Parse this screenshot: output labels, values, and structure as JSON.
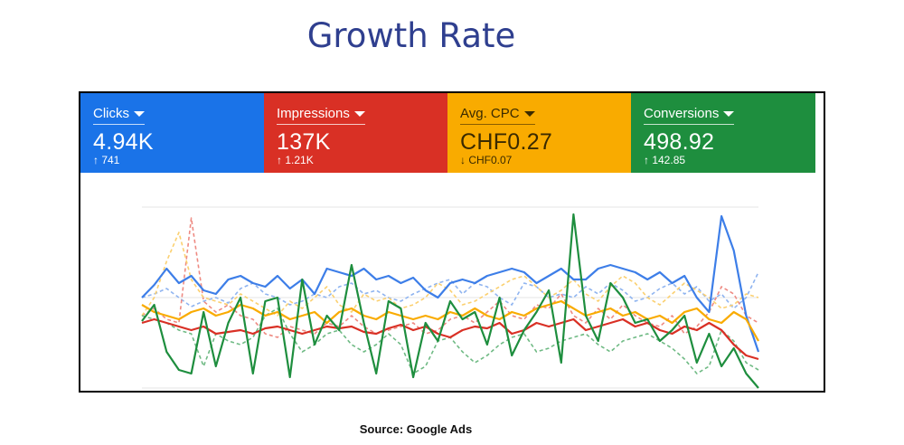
{
  "title": "Growth Rate",
  "source": "Source: Google Ads",
  "metrics": [
    {
      "label": "Clicks",
      "value": "4.94K",
      "change": "↑ 741",
      "color": "#1a73e8"
    },
    {
      "label": "Impressions",
      "value": "137K",
      "change": "↑ 1.21K",
      "color": "#d93025"
    },
    {
      "label": "Avg. CPC",
      "value": "CHF0.27",
      "change": "↓ CHF0.07",
      "color": "#f9ab00"
    },
    {
      "label": "Conversions",
      "value": "498.92",
      "change": "↑ 142.85",
      "color": "#1e8e3e"
    }
  ],
  "chart_data": {
    "type": "line",
    "grid": true,
    "ylim": [
      0,
      100
    ],
    "x": [
      0,
      1,
      2,
      3,
      4,
      5,
      6,
      7,
      8,
      9,
      10,
      11,
      12,
      13,
      14,
      15,
      16,
      17,
      18,
      19,
      20,
      21,
      22,
      23,
      24,
      25,
      26,
      27,
      28,
      29,
      30,
      31,
      32,
      33,
      34,
      35,
      36,
      37,
      38,
      39,
      40,
      41,
      42,
      43,
      44,
      45,
      46,
      47,
      48,
      49,
      50
    ],
    "series": [
      {
        "metric": "Clicks",
        "style": "solid",
        "color": "#3d7ee8",
        "values": [
          50,
          57,
          66,
          58,
          62,
          54,
          52,
          60,
          62,
          58,
          56,
          62,
          55,
          60,
          52,
          66,
          64,
          62,
          66,
          60,
          62,
          58,
          61,
          54,
          50,
          58,
          60,
          58,
          62,
          64,
          66,
          64,
          58,
          62,
          66,
          60,
          60,
          66,
          68,
          66,
          64,
          60,
          64,
          58,
          62,
          50,
          42,
          95,
          76,
          40,
          20
        ]
      },
      {
        "metric": "Clicks",
        "style": "dashed",
        "color": "#8fb4f0",
        "values": [
          50,
          52,
          55,
          50,
          45,
          48,
          50,
          47,
          55,
          58,
          52,
          50,
          46,
          48,
          52,
          50,
          56,
          58,
          52,
          54,
          50,
          48,
          52,
          55,
          58,
          60,
          52,
          58,
          56,
          50,
          46,
          58,
          56,
          50,
          52,
          50,
          56,
          52,
          58,
          54,
          48,
          50,
          55,
          58,
          52,
          56,
          48,
          52,
          44,
          50,
          64
        ]
      },
      {
        "metric": "Impressions",
        "style": "solid",
        "color": "#d93025",
        "values": [
          36,
          38,
          36,
          34,
          32,
          34,
          30,
          31,
          32,
          30,
          33,
          34,
          32,
          30,
          32,
          34,
          33,
          34,
          31,
          30,
          33,
          35,
          32,
          34,
          30,
          28,
          32,
          34,
          33,
          36,
          30,
          32,
          36,
          34,
          36,
          38,
          32,
          34,
          36,
          38,
          34,
          36,
          32,
          30,
          34,
          32,
          36,
          32,
          24,
          18,
          16
        ]
      },
      {
        "metric": "Impressions",
        "style": "dashed",
        "color": "#ee8a82",
        "values": [
          40,
          44,
          38,
          36,
          94,
          48,
          42,
          46,
          40,
          38,
          30,
          28,
          34,
          32,
          30,
          36,
          34,
          40,
          34,
          30,
          32,
          34,
          36,
          30,
          32,
          38,
          40,
          36,
          42,
          48,
          40,
          38,
          46,
          44,
          52,
          40,
          36,
          44,
          38,
          46,
          40,
          36,
          34,
          40,
          30,
          34,
          42,
          56,
          52,
          40,
          36
        ]
      },
      {
        "metric": "Avg. CPC",
        "style": "solid",
        "color": "#f9ab00",
        "values": [
          46,
          42,
          40,
          38,
          42,
          44,
          40,
          42,
          46,
          44,
          40,
          42,
          38,
          40,
          42,
          36,
          42,
          44,
          40,
          38,
          42,
          40,
          38,
          40,
          38,
          42,
          40,
          44,
          40,
          38,
          42,
          40,
          44,
          46,
          48,
          44,
          40,
          42,
          44,
          40,
          42,
          38,
          40,
          36,
          42,
          44,
          38,
          36,
          42,
          38,
          26
        ]
      },
      {
        "metric": "Avg. CPC",
        "style": "dashed",
        "color": "#fbd070",
        "values": [
          40,
          50,
          70,
          86,
          60,
          50,
          48,
          46,
          52,
          48,
          44,
          40,
          48,
          44,
          50,
          56,
          46,
          42,
          52,
          48,
          50,
          44,
          46,
          50,
          58,
          54,
          46,
          48,
          52,
          56,
          60,
          62,
          56,
          50,
          54,
          60,
          52,
          48,
          56,
          62,
          58,
          50,
          46,
          52,
          58,
          54,
          50,
          44,
          46,
          52,
          50
        ]
      },
      {
        "metric": "Conversions",
        "style": "solid",
        "color": "#1e8e3e",
        "values": [
          37,
          46,
          20,
          10,
          8,
          42,
          12,
          36,
          50,
          8,
          48,
          50,
          6,
          60,
          24,
          40,
          32,
          68,
          36,
          8,
          48,
          44,
          6,
          36,
          26,
          48,
          38,
          42,
          24,
          50,
          18,
          32,
          42,
          54,
          14,
          96,
          40,
          26,
          58,
          50,
          36,
          38,
          26,
          32,
          40,
          14,
          30,
          12,
          22,
          8,
          0
        ]
      },
      {
        "metric": "Conversions",
        "style": "dashed",
        "color": "#6fba84",
        "values": [
          40,
          38,
          36,
          32,
          30,
          12,
          30,
          26,
          24,
          28,
          40,
          44,
          30,
          20,
          24,
          30,
          32,
          24,
          20,
          24,
          30,
          24,
          8,
          12,
          26,
          28,
          20,
          14,
          18,
          24,
          28,
          30,
          20,
          22,
          26,
          28,
          30,
          24,
          20,
          26,
          28,
          30,
          26,
          22,
          16,
          8,
          12,
          32,
          26,
          14,
          10
        ]
      }
    ]
  }
}
